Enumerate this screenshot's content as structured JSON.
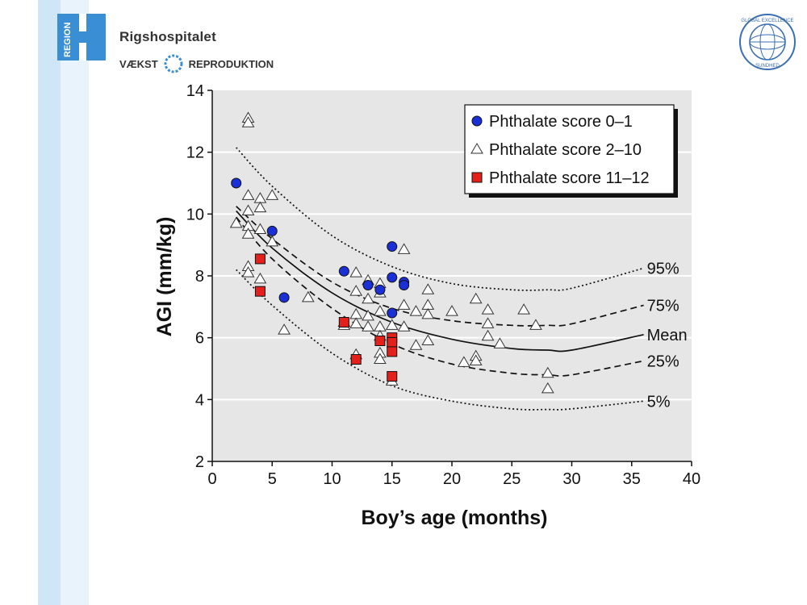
{
  "header": {
    "region_label": "REGION",
    "hospital_name": "Rigshospitalet",
    "tagline_left": "VÆKST",
    "tagline_right": "REPRODUKTION",
    "seal_text": "GLOBAL EXCELLENCE",
    "seal_subtext": "SUNDHED",
    "brand_color": "#3a8fd4"
  },
  "chart_data": {
    "type": "scatter",
    "title": "",
    "xlabel": "Boy’s age (months)",
    "ylabel": "AGI (mm/kg)",
    "xlim": [
      0,
      40
    ],
    "ylim": [
      2,
      14
    ],
    "xticks": [
      0,
      5,
      10,
      15,
      20,
      25,
      30,
      35,
      40
    ],
    "yticks": [
      2,
      4,
      6,
      8,
      10,
      12,
      14
    ],
    "grid": "horizontal",
    "legend_position": "top-right",
    "series": [
      {
        "name": "Phthalate score 0–1",
        "marker": "circle",
        "color": "#1a2fd6",
        "points": [
          [
            2,
            11.0
          ],
          [
            5,
            9.45
          ],
          [
            6,
            7.3
          ],
          [
            11,
            8.15
          ],
          [
            13,
            7.7
          ],
          [
            14,
            7.55
          ],
          [
            15,
            8.95
          ],
          [
            15,
            7.95
          ],
          [
            15,
            6.8
          ],
          [
            16,
            7.8
          ],
          [
            16,
            7.7
          ]
        ]
      },
      {
        "name": "Phthalate score 2–10",
        "marker": "triangle",
        "color": "#ffffff",
        "points": [
          [
            3,
            13.1
          ],
          [
            3,
            12.95
          ],
          [
            2,
            9.7
          ],
          [
            3,
            10.6
          ],
          [
            3,
            10.1
          ],
          [
            3,
            9.6
          ],
          [
            3,
            9.35
          ],
          [
            3,
            8.3
          ],
          [
            3,
            8.1
          ],
          [
            4,
            10.5
          ],
          [
            4,
            10.2
          ],
          [
            4,
            9.5
          ],
          [
            4,
            7.9
          ],
          [
            5,
            10.6
          ],
          [
            5,
            9.1
          ],
          [
            6,
            6.25
          ],
          [
            8,
            7.3
          ],
          [
            11,
            6.5
          ],
          [
            11,
            6.4
          ],
          [
            12,
            8.1
          ],
          [
            12,
            7.5
          ],
          [
            12,
            6.75
          ],
          [
            12,
            6.45
          ],
          [
            12,
            5.45
          ],
          [
            13,
            7.85
          ],
          [
            13,
            7.25
          ],
          [
            13,
            6.7
          ],
          [
            13,
            6.35
          ],
          [
            14,
            7.75
          ],
          [
            14,
            7.45
          ],
          [
            14,
            6.85
          ],
          [
            14,
            6.35
          ],
          [
            14,
            6.05
          ],
          [
            14,
            5.5
          ],
          [
            14,
            5.3
          ],
          [
            15,
            6.4
          ],
          [
            15,
            4.6
          ],
          [
            16,
            8.85
          ],
          [
            16,
            7.05
          ],
          [
            16,
            6.35
          ],
          [
            17,
            6.85
          ],
          [
            17,
            5.75
          ],
          [
            18,
            7.55
          ],
          [
            18,
            7.05
          ],
          [
            18,
            6.75
          ],
          [
            18,
            5.9
          ],
          [
            20,
            6.85
          ],
          [
            21,
            5.2
          ],
          [
            22,
            7.25
          ],
          [
            22,
            5.4
          ],
          [
            22,
            5.25
          ],
          [
            23,
            6.9
          ],
          [
            23,
            6.45
          ],
          [
            23,
            6.05
          ],
          [
            24,
            5.8
          ],
          [
            26,
            6.9
          ],
          [
            27,
            6.4
          ],
          [
            28,
            4.85
          ],
          [
            28,
            4.35
          ]
        ]
      },
      {
        "name": "Phthalate score 11–12",
        "marker": "square",
        "color": "#e3201b",
        "points": [
          [
            4,
            8.55
          ],
          [
            4,
            7.5
          ],
          [
            11,
            6.5
          ],
          [
            12,
            5.3
          ],
          [
            14,
            5.9
          ],
          [
            15,
            6.0
          ],
          [
            15,
            5.85
          ],
          [
            15,
            5.55
          ],
          [
            15,
            4.75
          ]
        ]
      }
    ],
    "curves": [
      {
        "name": "95%",
        "label": "95%",
        "style": "dotted",
        "x": [
          2,
          5,
          10,
          15,
          20,
          25,
          28,
          30,
          36
        ],
        "y": [
          12.15,
          10.9,
          9.3,
          8.3,
          7.75,
          7.55,
          7.55,
          7.6,
          8.25
        ]
      },
      {
        "name": "75%",
        "label": "75%",
        "style": "dashed",
        "x": [
          2,
          5,
          10,
          15,
          20,
          25,
          28,
          30,
          36
        ],
        "y": [
          10.25,
          9.2,
          7.8,
          6.95,
          6.55,
          6.4,
          6.4,
          6.45,
          7.05
        ]
      },
      {
        "name": "Mean",
        "label": "Mean",
        "style": "solid",
        "x": [
          2,
          5,
          10,
          15,
          20,
          25,
          28,
          30,
          36
        ],
        "y": [
          10.1,
          8.9,
          7.45,
          6.5,
          5.95,
          5.65,
          5.6,
          5.6,
          6.1
        ]
      },
      {
        "name": "25%",
        "label": "25%",
        "style": "dashed",
        "x": [
          2,
          5,
          10,
          15,
          20,
          25,
          28,
          30,
          36
        ],
        "y": [
          9.9,
          8.55,
          6.95,
          5.8,
          5.15,
          4.85,
          4.8,
          4.8,
          5.25
        ]
      },
      {
        "name": "5%",
        "label": "5%",
        "style": "dotted",
        "x": [
          2,
          5,
          10,
          15,
          20,
          25,
          28,
          30,
          36
        ],
        "y": [
          8.2,
          7.05,
          5.5,
          4.45,
          3.95,
          3.7,
          3.68,
          3.7,
          3.95
        ]
      }
    ]
  }
}
